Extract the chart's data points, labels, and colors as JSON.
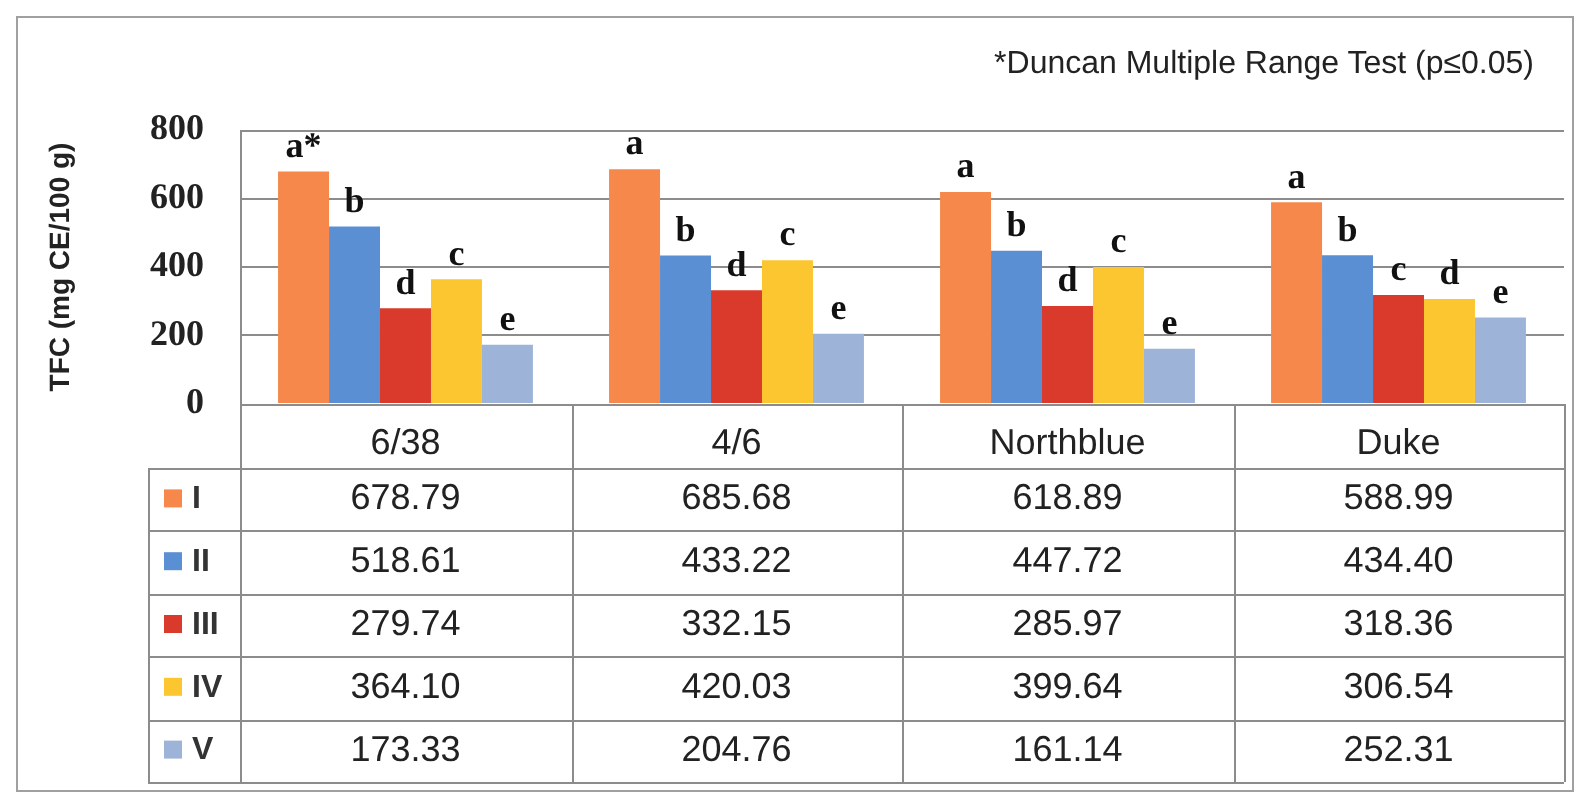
{
  "chart_data": {
    "type": "bar",
    "ylabel": "TFC (mg CE/100 g)",
    "categories": [
      "6/38",
      "4/6",
      "Northblue",
      "Duke"
    ],
    "series": [
      {
        "name": "I",
        "color": "#f5884a",
        "values": [
          678.79,
          685.68,
          618.89,
          588.99
        ],
        "value_labels": [
          "678.79",
          "685.68",
          "618.89",
          "588.99"
        ]
      },
      {
        "name": "II",
        "color": "#5a8fd3",
        "values": [
          518.61,
          433.22,
          447.72,
          434.4
        ],
        "value_labels": [
          "518.61",
          "433.22",
          "447.72",
          "434.40"
        ]
      },
      {
        "name": "III",
        "color": "#d93a2b",
        "values": [
          279.74,
          332.15,
          285.97,
          318.36
        ],
        "value_labels": [
          "279.74",
          "332.15",
          "285.97",
          "318.36"
        ]
      },
      {
        "name": "IV",
        "color": "#fcc631",
        "values": [
          364.1,
          420.03,
          399.64,
          306.54
        ],
        "value_labels": [
          "364.10",
          "420.03",
          "399.64",
          "306.54"
        ]
      },
      {
        "name": "V",
        "color": "#9db3d8",
        "values": [
          173.33,
          204.76,
          161.14,
          252.31
        ],
        "value_labels": [
          "173.33",
          "204.76",
          "161.14",
          "252.31"
        ]
      }
    ],
    "ylim": [
      0,
      800
    ],
    "yticks": [
      0,
      200,
      400,
      600,
      800
    ],
    "grid": "y",
    "legend": "bottom left",
    "annotations": [
      "a*",
      "b",
      "d",
      "c",
      "e",
      "a",
      "b",
      "d",
      "c",
      "e",
      "a",
      "b",
      "d",
      "c",
      "e",
      "a",
      "b",
      "c",
      "d",
      "e",
      "*Duncan Multiple Range Test (p≤0.05)"
    ]
  }
}
